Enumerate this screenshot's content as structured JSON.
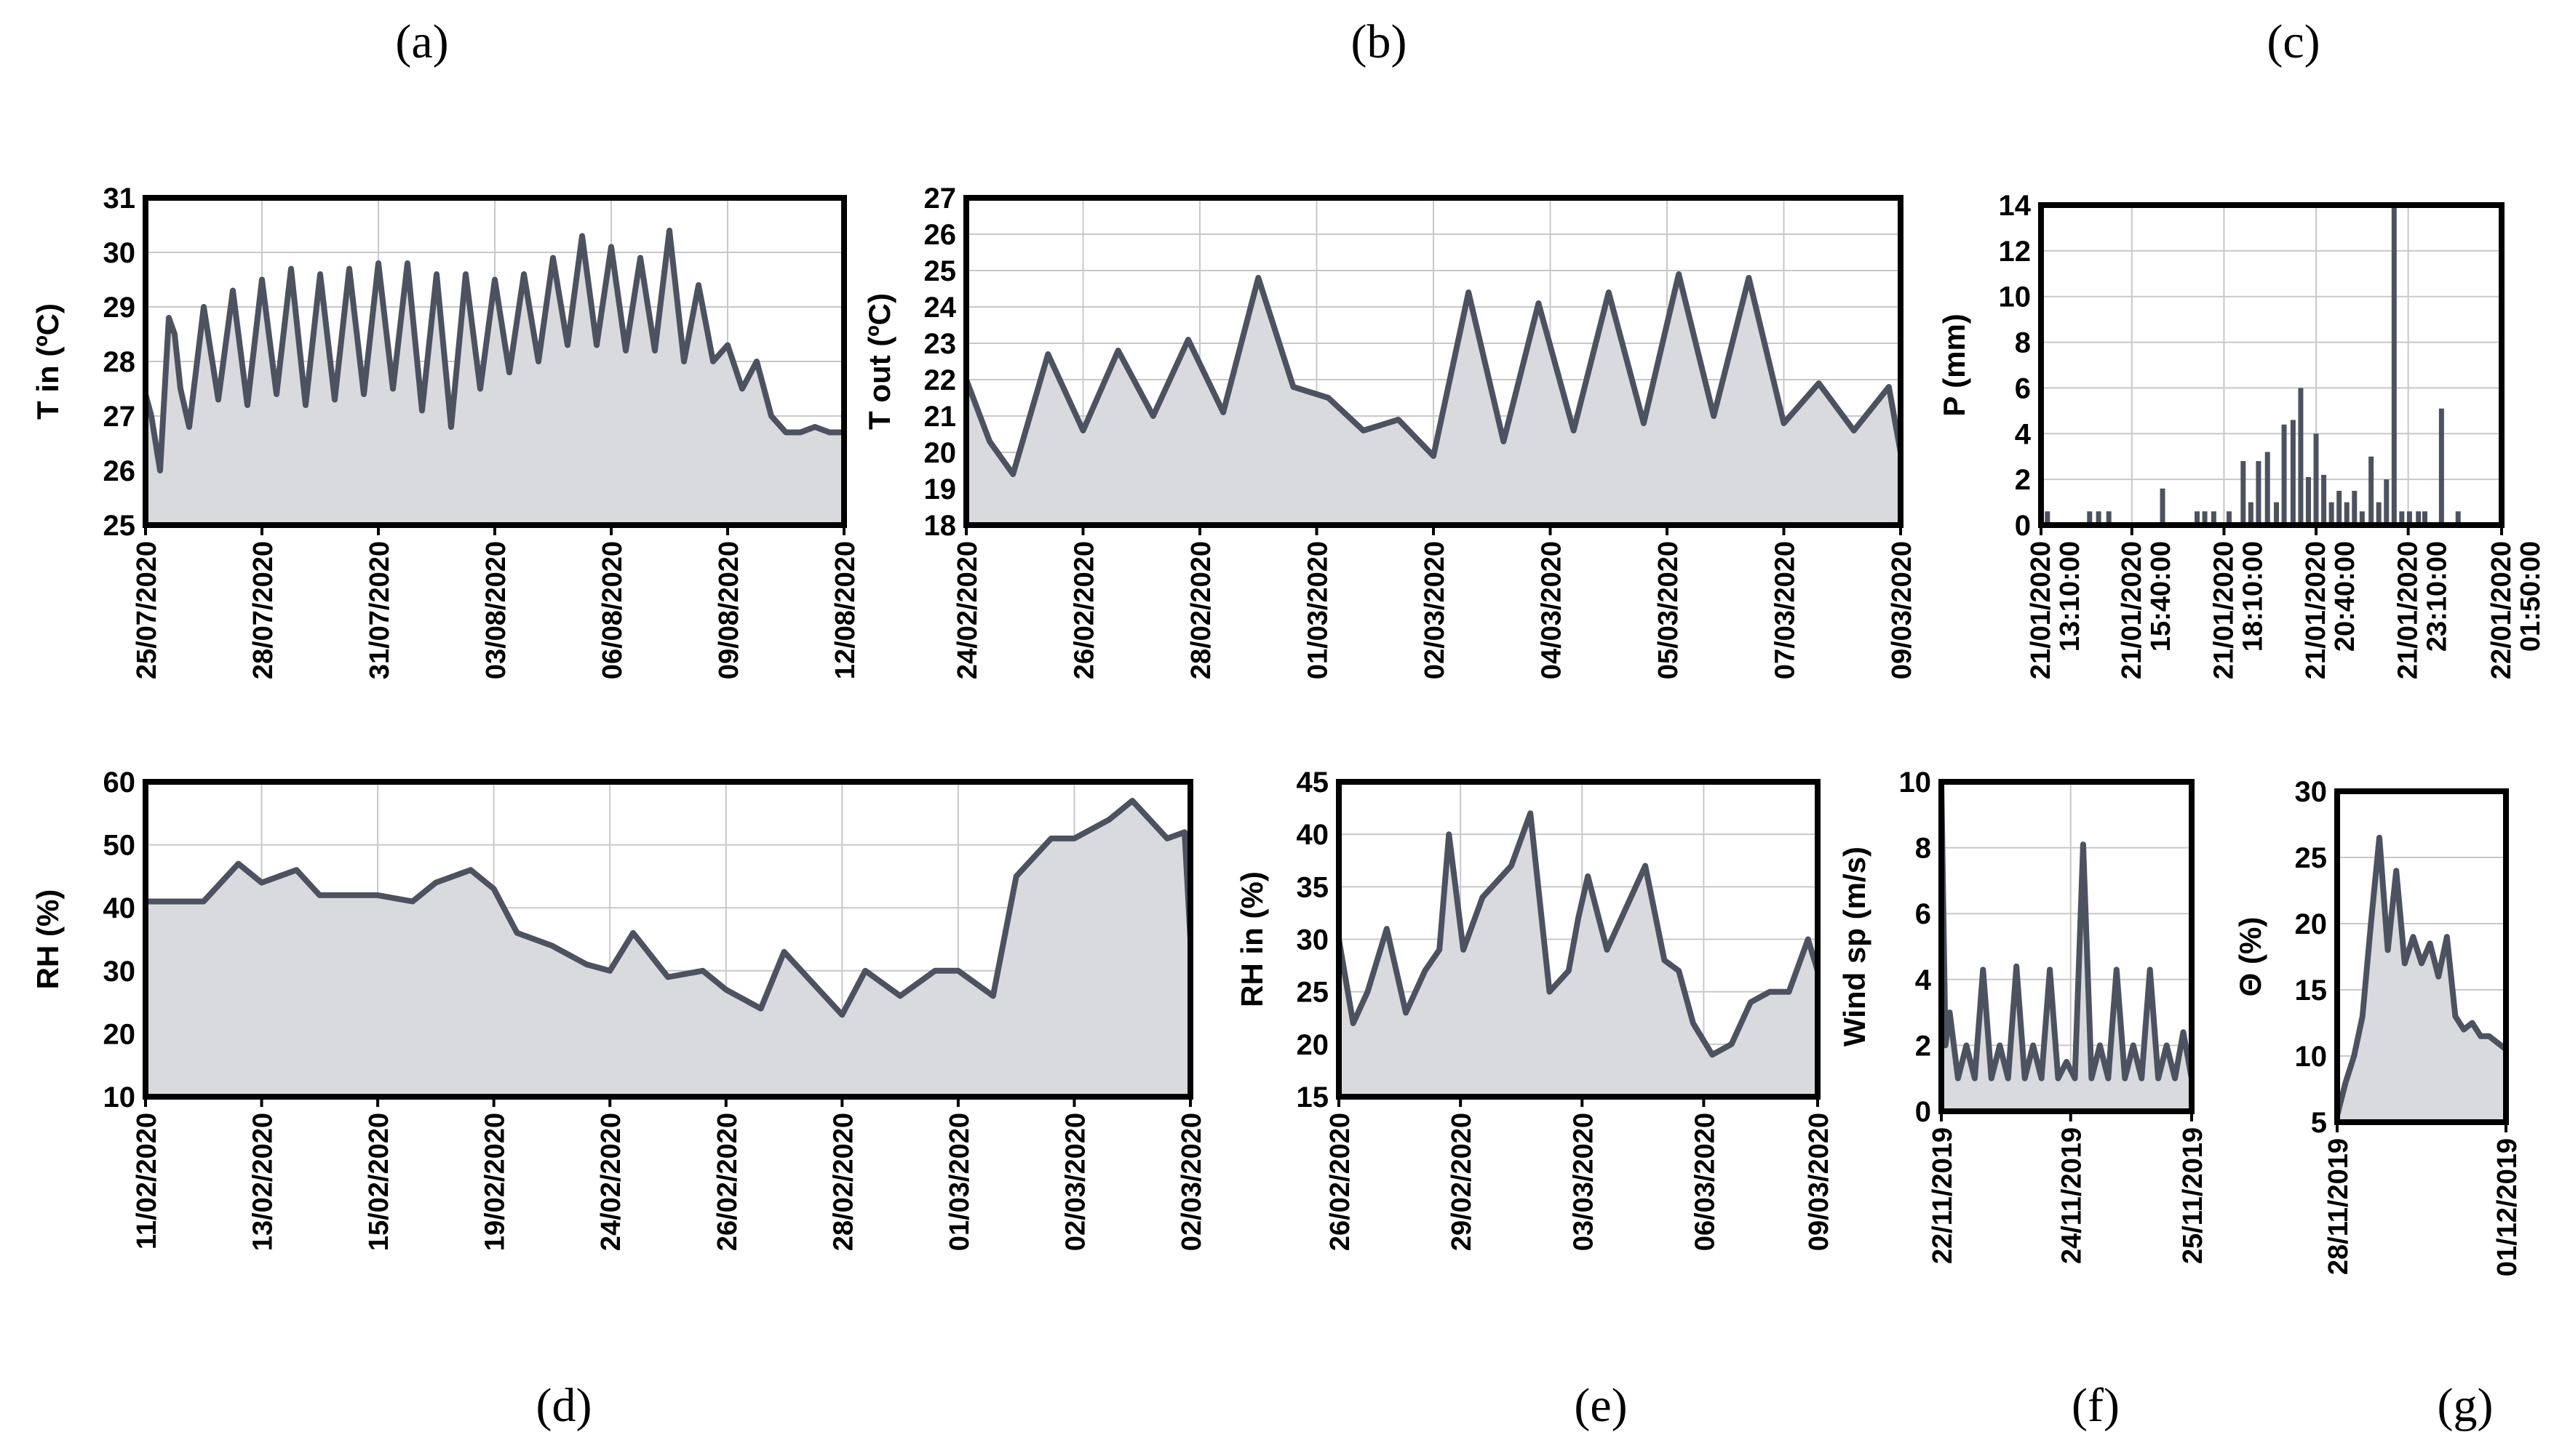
{
  "chart_data": [
    {
      "id": "a",
      "type": "area",
      "panel_label": "(a)",
      "ylabel": "T in (ºC)",
      "ylim": [
        25,
        31
      ],
      "yticks": [
        25,
        26,
        27,
        28,
        29,
        30,
        31
      ],
      "xticks": [
        "25/07/2020",
        "28/07/2020",
        "31/07/2020",
        "03/08/2020",
        "06/08/2020",
        "09/08/2020",
        "12/08/2020"
      ],
      "x": [
        0,
        0.2,
        0.5,
        0.8,
        1.0,
        1.2,
        1.5,
        2.0,
        2.5,
        3.0,
        3.5,
        4.0,
        4.5,
        5.0,
        5.5,
        6.0,
        6.5,
        7.0,
        7.5,
        8.0,
        8.5,
        9.0,
        9.5,
        10.0,
        10.5,
        11.0,
        11.5,
        12.0,
        12.5,
        13.0,
        13.5,
        14.0,
        14.5,
        15.0,
        15.5,
        16.0,
        16.5,
        17.0,
        17.5,
        18.0,
        18.5,
        19.0,
        19.5,
        20.0,
        20.5,
        21.0,
        21.5,
        22.0,
        22.5,
        23.0,
        23.5,
        24.0
      ],
      "y": [
        27.4,
        27.0,
        26.0,
        28.8,
        28.5,
        27.5,
        26.8,
        29.0,
        27.3,
        29.3,
        27.2,
        29.5,
        27.4,
        29.7,
        27.2,
        29.6,
        27.3,
        29.7,
        27.4,
        29.8,
        27.5,
        29.8,
        27.1,
        29.6,
        26.8,
        29.6,
        27.5,
        29.5,
        27.8,
        29.6,
        28.0,
        29.9,
        28.3,
        30.3,
        28.3,
        30.1,
        28.2,
        29.9,
        28.2,
        30.4,
        28.0,
        29.4,
        28.0,
        28.3,
        27.5,
        28.0,
        27.0,
        26.7,
        26.7,
        26.8,
        26.7,
        26.7
      ]
    },
    {
      "id": "b",
      "type": "area",
      "panel_label": "(b)",
      "ylabel": "T out (ºC)",
      "ylim": [
        18,
        27
      ],
      "yticks": [
        18,
        19,
        20,
        21,
        22,
        23,
        24,
        25,
        26,
        27
      ],
      "xticks": [
        "24/02/2020",
        "26/02/2020",
        "28/02/2020",
        "01/03/2020",
        "02/03/2020",
        "04/03/2020",
        "05/03/2020",
        "07/03/2020",
        "09/03/2020"
      ],
      "x": [
        0,
        0.2,
        0.4,
        0.7,
        1.0,
        1.3,
        1.6,
        1.9,
        2.2,
        2.5,
        2.8,
        3.1,
        3.4,
        3.7,
        4.0,
        4.3,
        4.6,
        4.9,
        5.2,
        5.5,
        5.8,
        6.1,
        6.4,
        6.7,
        7.0,
        7.3,
        7.6,
        7.9,
        8.0
      ],
      "y": [
        22.0,
        20.3,
        19.4,
        22.7,
        20.6,
        22.8,
        21.0,
        23.1,
        21.1,
        24.8,
        21.8,
        21.5,
        20.6,
        20.9,
        19.9,
        24.4,
        20.3,
        24.1,
        20.6,
        24.4,
        20.8,
        24.9,
        21.0,
        24.8,
        20.8,
        21.9,
        20.6,
        21.8,
        20.0
      ]
    },
    {
      "id": "c",
      "type": "bar",
      "panel_label": "(c)",
      "ylabel": "P (mm)",
      "ylim": [
        0,
        14
      ],
      "yticks": [
        0,
        2,
        4,
        6,
        8,
        10,
        12,
        14
      ],
      "xticks": [
        [
          "21/01/2020",
          "13:10:00"
        ],
        [
          "21/01/2020",
          "15:40:00"
        ],
        [
          "21/01/2020",
          "18:10:00"
        ],
        [
          "21/01/2020",
          "20:40:00"
        ],
        [
          "21/01/2020",
          "23:10:00"
        ],
        [
          "22/01/2020",
          "01:50:00"
        ]
      ],
      "x": [
        0.05,
        0.38,
        0.45,
        0.53,
        0.95,
        1.22,
        1.28,
        1.35,
        1.47,
        1.58,
        1.64,
        1.7,
        1.77,
        1.84,
        1.9,
        1.97,
        2.03,
        2.09,
        2.15,
        2.21,
        2.27,
        2.33,
        2.39,
        2.45,
        2.51,
        2.58,
        2.64,
        2.7,
        2.76,
        2.82,
        2.88,
        2.95,
        3.0,
        3.13,
        3.26
      ],
      "values": [
        0.6,
        0.6,
        0.6,
        0.6,
        1.6,
        0.6,
        0.6,
        0.6,
        0.6,
        2.8,
        1.0,
        2.8,
        3.2,
        1.0,
        4.4,
        4.6,
        6.0,
        2.1,
        4.0,
        2.2,
        1.0,
        1.5,
        1.0,
        1.5,
        0.6,
        3.0,
        1.0,
        2.0,
        14.0,
        0.6,
        0.6,
        0.6,
        0.6,
        5.1,
        0.6
      ]
    },
    {
      "id": "d",
      "type": "area",
      "panel_label": "(d)",
      "ylabel": "RH (%)",
      "ylim": [
        10,
        60
      ],
      "yticks": [
        10,
        20,
        30,
        40,
        50,
        60
      ],
      "xticks": [
        "11/02/2020",
        "13/02/2020",
        "15/02/2020",
        "19/02/2020",
        "24/02/2020",
        "26/02/2020",
        "28/02/2020",
        "01/03/2020",
        "02/03/2020",
        "02/03/2020"
      ],
      "x": [
        0,
        0.3,
        0.5,
        0.8,
        1.0,
        1.3,
        1.5,
        1.8,
        2.0,
        2.3,
        2.5,
        2.8,
        3.0,
        3.2,
        3.5,
        3.8,
        4.0,
        4.2,
        4.5,
        4.8,
        5.0,
        5.3,
        5.5,
        5.8,
        6.0,
        6.2,
        6.5,
        6.8,
        7.0,
        7.3,
        7.5,
        7.8,
        8.0,
        8.3,
        8.5,
        8.8,
        8.95,
        9.0
      ],
      "y": [
        41,
        41,
        41,
        47,
        44,
        46,
        42,
        42,
        42,
        41,
        44,
        46,
        43,
        36,
        34,
        31,
        30,
        36,
        29,
        30,
        27,
        24,
        33,
        27,
        23,
        30,
        26,
        30,
        30,
        26,
        45,
        51,
        51,
        54,
        57,
        51,
        52,
        35
      ]
    },
    {
      "id": "e",
      "type": "area",
      "panel_label": "(e)",
      "ylabel": "RH in (%)",
      "ylim": [
        15,
        45
      ],
      "yticks": [
        15,
        20,
        25,
        30,
        35,
        40,
        45
      ],
      "xticks": [
        "26/02/2020",
        "29/02/2020",
        "03/03/2020",
        "06/03/2020",
        "09/03/2020"
      ],
      "x": [
        0,
        0.15,
        0.3,
        0.5,
        0.7,
        0.9,
        1.05,
        1.15,
        1.3,
        1.5,
        1.8,
        2.0,
        2.2,
        2.4,
        2.5,
        2.6,
        2.8,
        3.0,
        3.2,
        3.4,
        3.55,
        3.7,
        3.9,
        4.1,
        4.3,
        4.5,
        4.7,
        4.9,
        5.0
      ],
      "y": [
        30,
        22,
        25,
        31,
        23,
        27,
        29,
        40,
        29,
        34,
        37,
        42,
        25,
        27,
        32,
        36,
        29,
        33,
        37,
        28,
        27,
        22,
        19,
        20,
        24,
        25,
        25,
        30,
        27
      ]
    },
    {
      "id": "f",
      "type": "area",
      "panel_label": "(f)",
      "ylabel": "Wind sp (m/s)",
      "ylim": [
        0,
        10
      ],
      "yticks": [
        0,
        2,
        4,
        6,
        8,
        10
      ],
      "xticks": [
        "22/11/2019",
        "24/11/2019",
        "25/11/2019"
      ],
      "x": [
        0,
        0.05,
        0.1,
        0.2,
        0.3,
        0.4,
        0.5,
        0.6,
        0.7,
        0.8,
        0.9,
        1.0,
        1.1,
        1.2,
        1.3,
        1.4,
        1.5,
        1.6,
        1.7,
        1.8,
        1.9,
        2.0,
        2.1,
        2.2,
        2.3,
        2.4,
        2.5,
        2.6,
        2.7,
        2.8,
        2.9,
        3.0
      ],
      "y": [
        10,
        2,
        3,
        1,
        2,
        1,
        4.3,
        1,
        2,
        1,
        4.4,
        1,
        2,
        1,
        4.3,
        1,
        1.5,
        1,
        8.1,
        1,
        2,
        1,
        4.3,
        1,
        2,
        1,
        4.3,
        1,
        2,
        1,
        2.4,
        1
      ]
    },
    {
      "id": "g",
      "type": "area",
      "panel_label": "(g)",
      "ylabel": "Θ (%)",
      "ylim": [
        5,
        30
      ],
      "yticks": [
        5,
        10,
        15,
        20,
        25,
        30
      ],
      "xticks": [
        "28/11/2019",
        "01/12/2019"
      ],
      "x": [
        0,
        0.1,
        0.2,
        0.3,
        0.4,
        0.5,
        0.6,
        0.7,
        0.8,
        0.9,
        1.0,
        1.1,
        1.2,
        1.3,
        1.4,
        1.5,
        1.6,
        1.7,
        1.8,
        1.9,
        2.0
      ],
      "y": [
        5.5,
        8,
        10,
        13,
        20,
        26.5,
        18,
        24,
        17,
        19,
        17,
        18.5,
        16,
        19,
        13,
        12,
        12.5,
        11.5,
        11.5,
        11,
        10.5
      ]
    }
  ],
  "panel_e_tick_offset_note": ""
}
